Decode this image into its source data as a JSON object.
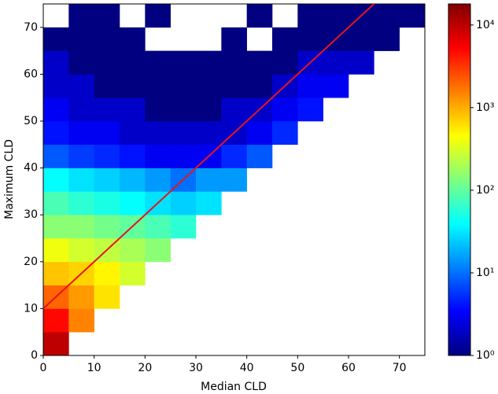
{
  "chart_data": {
    "type": "heatmap",
    "xlabel": "Median CLD",
    "ylabel": "Maximum CLD",
    "xbins": [
      0,
      5,
      10,
      15,
      20,
      25,
      30,
      35,
      40,
      45,
      50,
      55,
      60,
      65,
      70,
      75
    ],
    "ybins": [
      0,
      5,
      10,
      15,
      20,
      25,
      30,
      35,
      40,
      45,
      50,
      55,
      60,
      65,
      70,
      75
    ],
    "z": [
      [
        10000,
        null,
        null,
        null,
        null,
        null,
        null,
        null,
        null,
        null,
        null,
        null,
        null,
        null,
        null
      ],
      [
        5000,
        1500,
        null,
        null,
        null,
        null,
        null,
        null,
        null,
        null,
        null,
        null,
        null,
        null,
        null
      ],
      [
        2000,
        1200,
        600,
        null,
        null,
        null,
        null,
        null,
        null,
        null,
        null,
        null,
        null,
        null,
        null
      ],
      [
        800,
        700,
        500,
        300,
        null,
        null,
        null,
        null,
        null,
        null,
        null,
        null,
        null,
        null,
        null
      ],
      [
        400,
        300,
        250,
        200,
        150,
        null,
        null,
        null,
        null,
        null,
        null,
        null,
        null,
        null,
        null
      ],
      [
        150,
        150,
        120,
        100,
        80,
        60,
        null,
        null,
        null,
        null,
        null,
        null,
        null,
        null,
        null
      ],
      [
        80,
        60,
        50,
        40,
        30,
        25,
        30,
        null,
        null,
        null,
        null,
        null,
        null,
        null,
        null
      ],
      [
        40,
        30,
        25,
        20,
        15,
        10,
        15,
        15,
        null,
        null,
        null,
        null,
        null,
        null,
        null
      ],
      [
        8,
        6,
        5,
        4,
        3,
        3,
        3,
        5,
        8,
        null,
        null,
        null,
        null,
        null,
        null
      ],
      [
        4,
        3,
        3,
        2,
        2,
        2,
        2,
        2,
        3,
        5,
        null,
        null,
        null,
        null,
        null
      ],
      [
        3,
        2,
        2,
        2,
        1,
        1,
        1,
        2,
        2,
        3,
        4,
        null,
        null,
        null,
        null
      ],
      [
        2,
        2,
        1,
        1,
        1,
        1,
        1,
        1,
        1,
        2,
        3,
        3,
        null,
        null,
        null
      ],
      [
        2,
        1,
        1,
        1,
        1,
        1,
        1,
        1,
        1,
        1,
        2,
        2,
        2,
        null,
        null
      ],
      [
        1,
        1,
        1,
        1,
        null,
        null,
        null,
        1,
        null,
        1,
        1,
        1,
        1,
        1,
        null
      ],
      [
        null,
        1,
        1,
        null,
        1,
        null,
        null,
        null,
        1,
        null,
        1,
        1,
        1,
        1,
        1
      ]
    ],
    "line": {
      "x": [
        0,
        65
      ],
      "y": [
        10,
        75
      ],
      "color": "#e8141c"
    },
    "xlim": [
      0,
      75
    ],
    "ylim": [
      0,
      75
    ],
    "xticks": [
      0,
      10,
      20,
      30,
      40,
      50,
      60,
      70
    ],
    "yticks": [
      0,
      10,
      20,
      30,
      40,
      50,
      60,
      70
    ],
    "colormap": "jet",
    "color_scale": "log",
    "clim": [
      1,
      18000
    ],
    "cticks": [
      {
        "value": 1,
        "label": "10⁰"
      },
      {
        "value": 10,
        "label": "10¹"
      },
      {
        "value": 100,
        "label": "10²"
      },
      {
        "value": 1000,
        "label": "10³"
      },
      {
        "value": 10000,
        "label": "10⁴"
      }
    ]
  }
}
